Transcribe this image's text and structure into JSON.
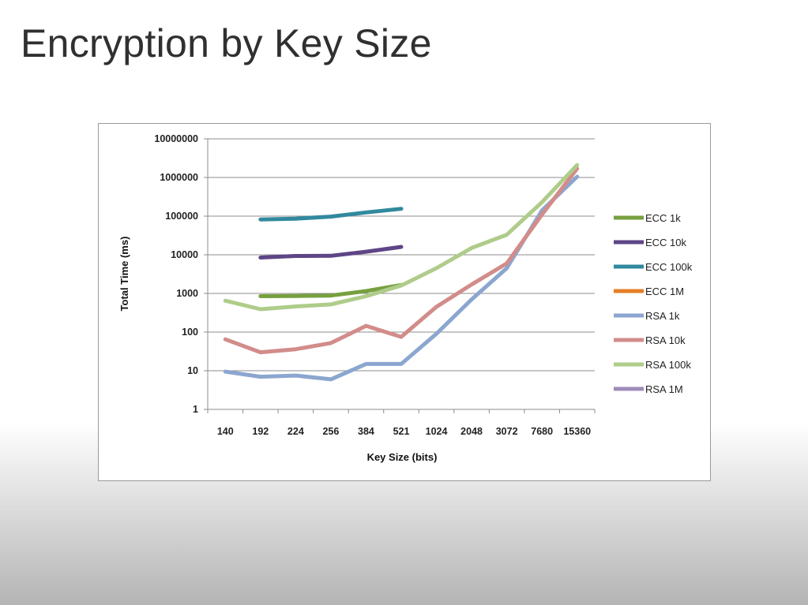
{
  "slide": {
    "title": "Encryption by Key Size"
  },
  "chart_data": {
    "type": "line",
    "title": "",
    "xlabel": "Key Size (bits)",
    "ylabel": "Total Time (ms)",
    "yscale": "log",
    "ylim": [
      1,
      10000000
    ],
    "y_ticks": [
      "10000000",
      "1000000",
      "100000",
      "10000",
      "1000",
      "100",
      "10",
      "1"
    ],
    "categories": [
      "140",
      "192",
      "224",
      "256",
      "384",
      "521",
      "1024",
      "2048",
      "3072",
      "7680",
      "15360"
    ],
    "grid": true,
    "legend_position": "right",
    "series": [
      {
        "name": "ECC 1k",
        "color": "#77A03F",
        "values": [
          null,
          850,
          860,
          880,
          1150,
          1650,
          null,
          null,
          null,
          null,
          null
        ]
      },
      {
        "name": "ECC 10k",
        "color": "#5E4586",
        "values": [
          null,
          8500,
          9300,
          9400,
          12000,
          16000,
          null,
          null,
          null,
          null,
          null
        ]
      },
      {
        "name": "ECC 100k",
        "color": "#31899E",
        "values": [
          null,
          82000,
          86000,
          97000,
          125000,
          155000,
          null,
          null,
          null,
          null,
          null
        ]
      },
      {
        "name": "ECC 1M",
        "color": "#E57F26",
        "values": [
          null,
          null,
          null,
          null,
          null,
          null,
          null,
          null,
          null,
          null,
          null
        ]
      },
      {
        "name": "RSA 1k",
        "color": "#8BA6CF",
        "values": [
          9.5,
          7,
          7.5,
          6,
          15,
          15,
          90,
          700,
          4500,
          140000,
          1050000
        ]
      },
      {
        "name": "RSA 10k",
        "color": "#D28C8A",
        "values": [
          65,
          30,
          36,
          52,
          145,
          75,
          450,
          1700,
          6000,
          110000,
          1700000
        ]
      },
      {
        "name": "RSA 100k",
        "color": "#AFCC8A",
        "values": [
          650,
          390,
          460,
          520,
          850,
          1600,
          4500,
          15000,
          33000,
          230000,
          2100000
        ]
      },
      {
        "name": "RSA 1M",
        "color": "#9E8BB8",
        "values": [
          null,
          null,
          null,
          null,
          null,
          null,
          null,
          null,
          null,
          null,
          null
        ]
      }
    ]
  }
}
